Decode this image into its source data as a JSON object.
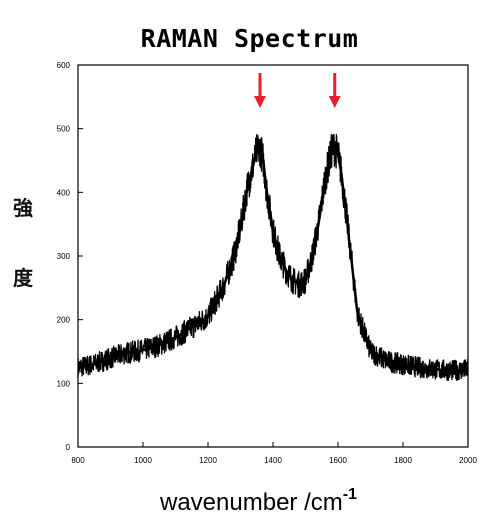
{
  "chart_data": {
    "type": "line",
    "title": "RAMAN Spectrum",
    "ylabel_chars": [
      "強",
      "度"
    ],
    "xlabel_text": "wavenumber /cm",
    "xlabel_superscript": "-1",
    "xlim": [
      800,
      2000
    ],
    "ylim": [
      0,
      600
    ],
    "x_ticks": [
      800,
      1000,
      1200,
      1400,
      1600,
      1800,
      2000
    ],
    "y_ticks": [
      0,
      100,
      200,
      300,
      400,
      500,
      600
    ],
    "grid": false,
    "line_color": "#000000",
    "arrow_color": "#e8202a",
    "series": [
      {
        "x": [
          800,
          850,
          900,
          950,
          1000,
          1050,
          1100,
          1150,
          1200,
          1250,
          1280,
          1300,
          1320,
          1340,
          1350,
          1360,
          1370,
          1380,
          1400,
          1420,
          1440,
          1460,
          1480,
          1500,
          1520,
          1540,
          1560,
          1580,
          1590,
          1600,
          1610,
          1620,
          1640,
          1660,
          1700,
          1750,
          1800,
          1850,
          1900,
          1950,
          2000
        ],
        "y": [
          125,
          130,
          140,
          148,
          152,
          160,
          172,
          188,
          205,
          255,
          300,
          345,
          405,
          445,
          465,
          470,
          450,
          405,
          340,
          300,
          278,
          262,
          255,
          262,
          298,
          350,
          420,
          465,
          470,
          460,
          430,
          390,
          300,
          210,
          150,
          135,
          130,
          125,
          122,
          120,
          122
        ]
      }
    ],
    "annotations": [
      {
        "type": "arrow",
        "x": 1360
      },
      {
        "type": "arrow",
        "x": 1590
      }
    ]
  }
}
